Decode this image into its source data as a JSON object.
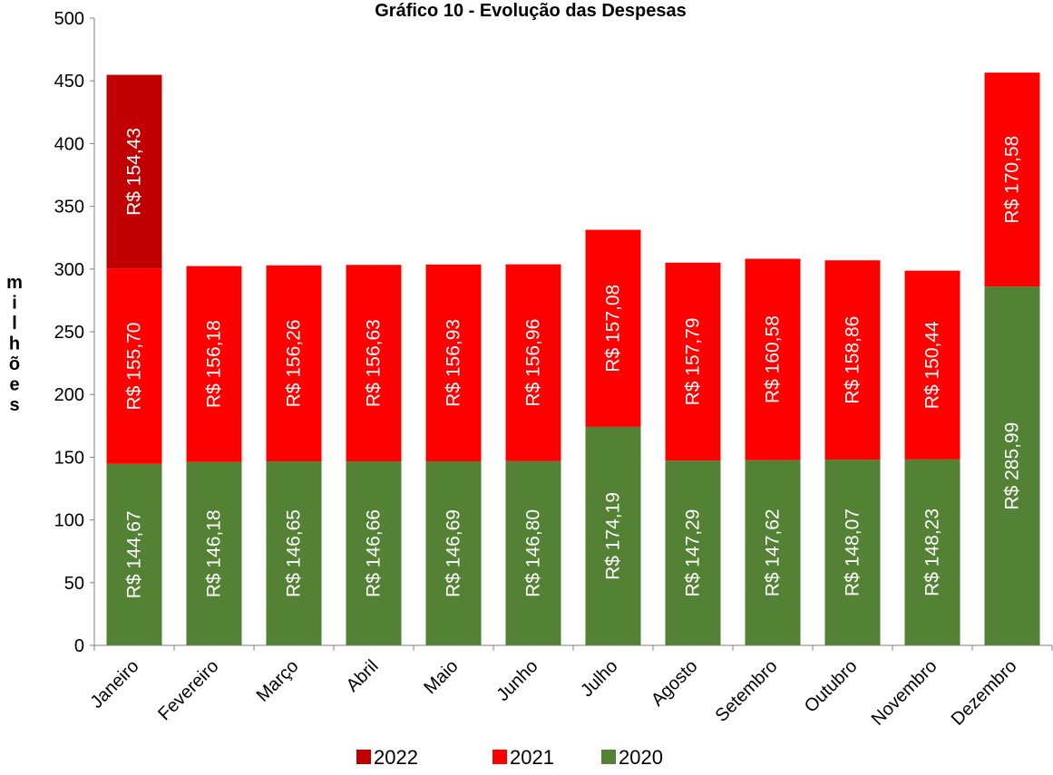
{
  "chart_data": {
    "type": "bar",
    "stacked": true,
    "title": "Gráfico 10 - Evolução das Despesas",
    "ylabel": "milhões",
    "ylim": [
      0,
      500
    ],
    "y_ticks": [
      0,
      50,
      100,
      150,
      200,
      250,
      300,
      350,
      400,
      450,
      500
    ],
    "grid": false,
    "legend_position": "bottom",
    "categories": [
      "Janeiro",
      "Fevereiro",
      "Março",
      "Abril",
      "Maio",
      "Junho",
      "Julho",
      "Agosto",
      "Setembro",
      "Outubro",
      "Novembro",
      "Dezembro"
    ],
    "series": [
      {
        "name": "2020",
        "color": "#548235",
        "values": [
          144.67,
          146.18,
          146.65,
          146.66,
          146.69,
          146.8,
          174.19,
          147.29,
          147.62,
          148.07,
          148.23,
          285.99
        ],
        "labels": [
          "R$ 144,67",
          "R$ 146,18",
          "R$ 146,65",
          "R$ 146,66",
          "R$ 146,69",
          "R$ 146,80",
          "R$ 174,19",
          "R$ 147,29",
          "R$ 147,62",
          "R$ 148,07",
          "R$ 148,23",
          "R$ 285,99"
        ]
      },
      {
        "name": "2021",
        "color": "#ff0000",
        "values": [
          155.7,
          156.18,
          156.26,
          156.63,
          156.93,
          156.96,
          157.08,
          157.79,
          160.58,
          158.86,
          150.44,
          170.58
        ],
        "labels": [
          "R$ 155,70",
          "R$ 156,18",
          "R$ 156,26",
          "R$ 156,63",
          "R$ 156,93",
          "R$ 156,96",
          "R$ 157,08",
          "R$ 157,79",
          "R$ 160,58",
          "R$ 158,86",
          "R$ 150,44",
          "R$ 170,58"
        ]
      },
      {
        "name": "2022",
        "color": "#c00000",
        "values": [
          154.43,
          null,
          null,
          null,
          null,
          null,
          null,
          null,
          null,
          null,
          null,
          null
        ],
        "labels": [
          "R$ 154,43",
          null,
          null,
          null,
          null,
          null,
          null,
          null,
          null,
          null,
          null,
          null
        ]
      }
    ],
    "legend_order": [
      "2022",
      "2021",
      "2020"
    ]
  }
}
